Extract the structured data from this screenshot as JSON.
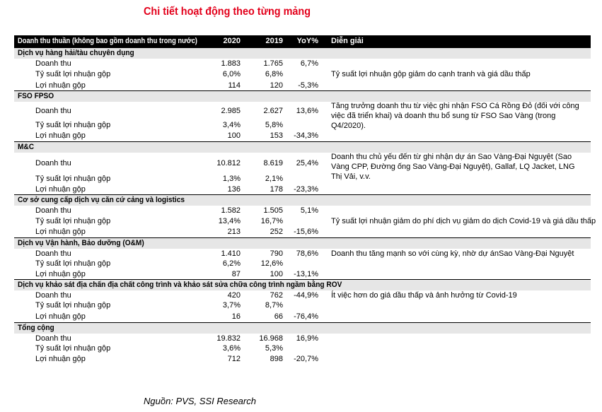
{
  "title": "Chi tiết hoạt động theo từng mảng",
  "header": {
    "label": "Doanh thu thuần (không bao gồm doanh thu trong nước)",
    "col2020": "2020",
    "col2019": "2019",
    "yoy": "YoY%",
    "note": "Diễn giải"
  },
  "sections": [
    {
      "name": "Dịch vụ hàng hải/tàu chuyên dụng",
      "rows": [
        {
          "label": "Doanh thu",
          "v2020": "1.883",
          "v2019": "1.765",
          "yoy": "6,7%",
          "note": ""
        },
        {
          "label": "Tỷ suất lợi nhuận gộp",
          "v2020": "6,0%",
          "v2019": "6,8%",
          "yoy": "",
          "note": "Tỷ suất lợi nhuận gộp giảm do cạnh tranh và giá dầu thấp"
        },
        {
          "label": "Lợi nhuận gộp",
          "v2020": "114",
          "v2019": "120",
          "yoy": "-5,3%",
          "note": ""
        }
      ]
    },
    {
      "name": "FSO FPSO",
      "rows": [
        {
          "label": "Doanh thu",
          "v2020": "2.985",
          "v2019": "2.627",
          "yoy": "13,6%",
          "note": "Tăng trưởng doanh thu từ việc ghi nhận FSO Cá Rồng Đỏ (đối với công việc đã triển khai) và doanh thu bổ sung từ FSO Sao Vàng (trong Q4/2020)."
        },
        {
          "label": "Tỷ suất lợi nhuận gộp",
          "v2020": "3,4%",
          "v2019": "5,8%",
          "yoy": "",
          "note": ""
        },
        {
          "label": "Lợi nhuận gộp",
          "v2020": "100",
          "v2019": "153",
          "yoy": "-34,3%",
          "note": ""
        }
      ]
    },
    {
      "name": "M&C",
      "rows": [
        {
          "label": "Doanh thu",
          "v2020": "10.812",
          "v2019": "8.619",
          "yoy": "25,4%",
          "note": "Doanh thu chủ yếu đến từ ghi nhận dự án Sao Vàng-Đại Nguyệt (Sao Vàng CPP, Đường ống Sao Vàng-Đại Nguyệt), Gallaf, LQ Jacket, LNG Thị Vải, v.v."
        },
        {
          "label": "Tỷ suất lợi nhuận gộp",
          "v2020": "1,3%",
          "v2019": "2,1%",
          "yoy": "",
          "note": ""
        },
        {
          "label": "Lợi nhuận gộp",
          "v2020": "136",
          "v2019": "178",
          "yoy": "-23,3%",
          "note": ""
        }
      ]
    },
    {
      "name": "Cơ sở cung cấp dịch vụ căn cứ cảng và logistics",
      "rows": [
        {
          "label": "Doanh thu",
          "v2020": "1.582",
          "v2019": "1.505",
          "yoy": "5,1%",
          "note": ""
        },
        {
          "label": "Tỷ suất lợi nhuận gộp",
          "v2020": "13,4%",
          "v2019": "16,7%",
          "yoy": "",
          "note": "Tỷ suất lợi nhuận giảm do phí dịch vụ giảm do dịch Covid-19 và giá dầu thấp"
        },
        {
          "label": "Lợi nhuận gộp",
          "v2020": "213",
          "v2019": "252",
          "yoy": "-15,6%",
          "note": ""
        }
      ]
    },
    {
      "name": "Dịch vụ Vận hành, Bảo dưỡng (O&M)",
      "rows": [
        {
          "label": "Doanh thu",
          "v2020": "1.410",
          "v2019": "790",
          "yoy": "78,6%",
          "note": "Doanh thu tăng mạnh so với cùng kỳ, nhờ dự ánSao Vàng-Đại Nguyệt"
        },
        {
          "label": "Tỷ suất lợi nhuận gộp",
          "v2020": "6,2%",
          "v2019": "12,6%",
          "yoy": "",
          "note": ""
        },
        {
          "label": "Lợi nhuận gộp",
          "v2020": "87",
          "v2019": "100",
          "yoy": "-13,1%",
          "note": ""
        }
      ]
    },
    {
      "name": "Dịch vụ khảo sát địa chấn địa chất công trình và khảo sát sửa chữa công trình ngầm bằng ROV",
      "rows": [
        {
          "label": "Doanh thu",
          "v2020": "420",
          "v2019": "762",
          "yoy": "-44,9%",
          "note": "Ít việc hơn do giá dầu thấp và ảnh hưởng từ Covid-19"
        },
        {
          "label": "Tỷ suất lợi nhuận gộp",
          "v2020": "3,7%",
          "v2019": "8,7%",
          "yoy": "",
          "note": ""
        },
        {
          "label": "Lợi nhuận gộp",
          "v2020": "16",
          "v2019": "66",
          "yoy": "-76,4%",
          "note": ""
        }
      ]
    },
    {
      "name": "Tổng cộng",
      "rows": [
        {
          "label": "Doanh thu",
          "v2020": "19.832",
          "v2019": "16.968",
          "yoy": "16,9%",
          "note": ""
        },
        {
          "label": "Tỷ suất lợi nhuận gộp",
          "v2020": "3,6%",
          "v2019": "5,3%",
          "yoy": "",
          "note": ""
        },
        {
          "label": "Lợi nhuận gộp",
          "v2020": "712",
          "v2019": "898",
          "yoy": "-20,7%",
          "note": ""
        }
      ]
    }
  ],
  "source": "Nguồn: PVS, SSI Research"
}
